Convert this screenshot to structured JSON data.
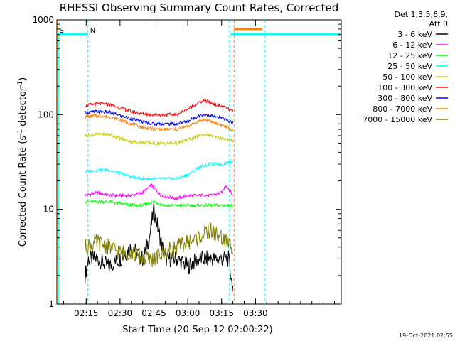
{
  "chart_data": {
    "type": "line",
    "title": "RHESSI Observing Summary Count Rates, Corrected",
    "xlabel": "Start Time (20-Sep-12 02:00:22)",
    "ylabel_main": "Corrected Count Rate (s",
    "ylabel_sup1": "-1",
    "ylabel_mid": " detector",
    "ylabel_sup2": "-1",
    "ylabel_end": ")",
    "y_log": true,
    "ylim": [
      1,
      1000
    ],
    "xlim_minutes": [
      2,
      128
    ],
    "x_ticks": [
      {
        "t": 15,
        "label": "02:15"
      },
      {
        "t": 30,
        "label": "02:30"
      },
      {
        "t": 45,
        "label": "02:45"
      },
      {
        "t": 60,
        "label": "03:00"
      },
      {
        "t": 75,
        "label": "03:15"
      },
      {
        "t": 90,
        "label": "03:30"
      }
    ],
    "y_ticks": [
      {
        "v": 1,
        "label": "1"
      },
      {
        "v": 10,
        "label": "10"
      },
      {
        "v": 100,
        "label": "100"
      },
      {
        "v": 1000,
        "label": "1000"
      }
    ],
    "legend_header": [
      "Det 1,3,5,6,9,",
      "Att 0"
    ],
    "series": [
      {
        "name": "3 - 6 keV",
        "color": "#000000",
        "points": [
          [
            14.5,
            2
          ],
          [
            16,
            3
          ],
          [
            20,
            3
          ],
          [
            25,
            2.5
          ],
          [
            30,
            3
          ],
          [
            35,
            4
          ],
          [
            40,
            3
          ],
          [
            43,
            5
          ],
          [
            45,
            10
          ],
          [
            47,
            6
          ],
          [
            50,
            3
          ],
          [
            55,
            3
          ],
          [
            60,
            2.5
          ],
          [
            65,
            3
          ],
          [
            70,
            3
          ],
          [
            75,
            3
          ],
          [
            78,
            3
          ],
          [
            80,
            1.5
          ]
        ]
      },
      {
        "name": "6 - 12 keV",
        "color": "#ff00ff",
        "points": [
          [
            14.5,
            14
          ],
          [
            20,
            15
          ],
          [
            25,
            14
          ],
          [
            30,
            14
          ],
          [
            35,
            14
          ],
          [
            40,
            15
          ],
          [
            44,
            18
          ],
          [
            48,
            14
          ],
          [
            55,
            13
          ],
          [
            60,
            14
          ],
          [
            65,
            14
          ],
          [
            70,
            14
          ],
          [
            75,
            15
          ],
          [
            77,
            18
          ],
          [
            80,
            14
          ]
        ]
      },
      {
        "name": "12 - 25 keV",
        "color": "#00ff00",
        "points": [
          [
            14.5,
            12
          ],
          [
            20,
            12
          ],
          [
            25,
            12
          ],
          [
            30,
            11.5
          ],
          [
            35,
            11
          ],
          [
            40,
            11
          ],
          [
            45,
            12
          ],
          [
            50,
            11
          ],
          [
            55,
            11
          ],
          [
            60,
            11
          ],
          [
            65,
            11
          ],
          [
            70,
            11
          ],
          [
            75,
            11
          ],
          [
            80,
            11
          ]
        ]
      },
      {
        "name": "25 - 50 keV",
        "color": "#00ffff",
        "points": [
          [
            14.5,
            25
          ],
          [
            20,
            26
          ],
          [
            25,
            26
          ],
          [
            30,
            24
          ],
          [
            35,
            22
          ],
          [
            40,
            21
          ],
          [
            45,
            21
          ],
          [
            50,
            21
          ],
          [
            55,
            21
          ],
          [
            60,
            23
          ],
          [
            65,
            28
          ],
          [
            70,
            30
          ],
          [
            75,
            30
          ],
          [
            80,
            32
          ]
        ]
      },
      {
        "name": "50 - 100 keV",
        "color": "#cccc00",
        "points": [
          [
            14.5,
            60
          ],
          [
            20,
            62
          ],
          [
            25,
            62
          ],
          [
            30,
            56
          ],
          [
            35,
            52
          ],
          [
            40,
            51
          ],
          [
            45,
            50
          ],
          [
            50,
            50
          ],
          [
            55,
            50
          ],
          [
            60,
            54
          ],
          [
            65,
            60
          ],
          [
            68,
            62
          ],
          [
            72,
            58
          ],
          [
            76,
            56
          ],
          [
            80,
            53
          ]
        ]
      },
      {
        "name": "100 - 300 keV",
        "color": "#ff0000",
        "points": [
          [
            14.5,
            125
          ],
          [
            20,
            130
          ],
          [
            25,
            128
          ],
          [
            30,
            118
          ],
          [
            35,
            108
          ],
          [
            40,
            102
          ],
          [
            45,
            100
          ],
          [
            50,
            100
          ],
          [
            55,
            100
          ],
          [
            60,
            115
          ],
          [
            65,
            135
          ],
          [
            68,
            140
          ],
          [
            72,
            128
          ],
          [
            76,
            120
          ],
          [
            80,
            108
          ]
        ]
      },
      {
        "name": "300 - 800 keV",
        "color": "#0000ff",
        "points": [
          [
            14.5,
            105
          ],
          [
            20,
            108
          ],
          [
            25,
            106
          ],
          [
            30,
            98
          ],
          [
            35,
            90
          ],
          [
            40,
            84
          ],
          [
            45,
            80
          ],
          [
            50,
            80
          ],
          [
            55,
            80
          ],
          [
            60,
            85
          ],
          [
            65,
            98
          ],
          [
            68,
            100
          ],
          [
            72,
            95
          ],
          [
            76,
            90
          ],
          [
            80,
            82
          ]
        ]
      },
      {
        "name": "800 - 7000 keV",
        "color": "#ff8000",
        "points": [
          [
            14.5,
            95
          ],
          [
            20,
            97
          ],
          [
            25,
            95
          ],
          [
            30,
            88
          ],
          [
            35,
            80
          ],
          [
            40,
            74
          ],
          [
            45,
            70
          ],
          [
            50,
            70
          ],
          [
            55,
            70
          ],
          [
            60,
            75
          ],
          [
            65,
            86
          ],
          [
            68,
            88
          ],
          [
            72,
            82
          ],
          [
            76,
            76
          ],
          [
            80,
            68
          ]
        ]
      },
      {
        "name": "7000 - 15000 keV",
        "color": "#808000",
        "points": [
          [
            14.5,
            4
          ],
          [
            20,
            4.5
          ],
          [
            25,
            4
          ],
          [
            30,
            3.5
          ],
          [
            35,
            3.5
          ],
          [
            40,
            3
          ],
          [
            45,
            3
          ],
          [
            50,
            3.5
          ],
          [
            55,
            4
          ],
          [
            60,
            4.5
          ],
          [
            65,
            5
          ],
          [
            70,
            6
          ],
          [
            75,
            5
          ],
          [
            80,
            4
          ]
        ]
      }
    ],
    "annotations": [
      {
        "t": 2.2,
        "label": "S",
        "color": "#ff8000"
      },
      {
        "t": 15.8,
        "label": "N",
        "color": "#00ffff"
      }
    ],
    "footer_timestamp": "19-Oct-2021 02:55"
  }
}
